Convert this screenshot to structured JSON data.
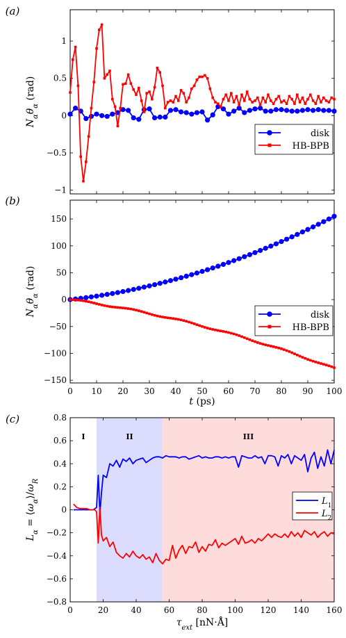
{
  "chart_data": [
    {
      "panel_label": "(a)",
      "type": "line",
      "ylabel": "N_αθ_α (rad)",
      "xlim": [
        0,
        100
      ],
      "ylim": [
        -1.05,
        1.42
      ],
      "yticks": [
        -1,
        -0.5,
        0,
        0.5,
        1
      ],
      "yticklabels": [
        "−1",
        "−0.5",
        "0",
        "0.5",
        "1"
      ],
      "legend_position": "lower-right",
      "series": [
        {
          "name": "disk",
          "color": "#0000ff",
          "marker": "circle",
          "x": [
            0,
            2,
            4,
            6,
            8,
            10,
            12,
            14,
            16,
            18,
            20,
            22,
            24,
            26,
            28,
            30,
            32,
            34,
            36,
            38,
            40,
            42,
            44,
            46,
            48,
            50,
            52,
            54,
            56,
            58,
            60,
            62,
            64,
            66,
            68,
            70,
            72,
            74,
            76,
            78,
            80,
            82,
            84,
            86,
            88,
            90,
            92,
            94,
            96,
            98,
            100
          ],
          "y": [
            0.02,
            0.1,
            0.06,
            -0.04,
            -0.01,
            0.02,
            0.0,
            -0.01,
            0.02,
            0.04,
            0.08,
            0.07,
            -0.03,
            -0.05,
            0.08,
            0.09,
            -0.03,
            -0.02,
            -0.02,
            0.07,
            0.08,
            0.05,
            0.04,
            0.02,
            0.04,
            0.05,
            -0.06,
            0.01,
            0.12,
            0.09,
            0.02,
            0.06,
            0.1,
            0.04,
            0.07,
            0.09,
            0.1,
            0.06,
            0.06,
            0.08,
            0.08,
            0.07,
            0.06,
            0.06,
            0.07,
            0.08,
            0.07,
            0.08,
            0.07,
            0.07,
            0.06
          ]
        },
        {
          "name": "HB-BPB",
          "color": "#ff0000",
          "marker": "square",
          "x": [
            0,
            1,
            2,
            3,
            4,
            5,
            6,
            7,
            8,
            9,
            10,
            11,
            12,
            13,
            14,
            15,
            16,
            17,
            18,
            19,
            20,
            21,
            22,
            23,
            24,
            25,
            26,
            27,
            28,
            29,
            30,
            31,
            32,
            33,
            34,
            35,
            36,
            37,
            38,
            39,
            40,
            41,
            42,
            43,
            44,
            45,
            46,
            47,
            48,
            49,
            50,
            51,
            52,
            53,
            54,
            55,
            56,
            57,
            58,
            59,
            60,
            61,
            62,
            63,
            64,
            65,
            66,
            67,
            68,
            69,
            70,
            71,
            72,
            73,
            74,
            75,
            76,
            77,
            78,
            79,
            80,
            81,
            82,
            83,
            84,
            85,
            86,
            87,
            88,
            89,
            90,
            91,
            92,
            93,
            94,
            95,
            96,
            97,
            98,
            99,
            100
          ],
          "y": [
            0.31,
            0.75,
            0.92,
            0.4,
            -0.55,
            -0.88,
            -0.62,
            -0.28,
            0.1,
            0.45,
            0.9,
            1.15,
            1.22,
            0.5,
            0.55,
            0.6,
            0.22,
            0.12,
            -0.14,
            0.1,
            0.42,
            0.43,
            0.55,
            0.43,
            0.35,
            0.28,
            0.37,
            0.2,
            0.05,
            0.3,
            0.32,
            0.22,
            0.38,
            0.64,
            0.58,
            0.4,
            0.1,
            0.18,
            0.2,
            0.18,
            0.26,
            0.2,
            0.34,
            0.3,
            0.18,
            0.24,
            0.36,
            0.4,
            0.48,
            0.52,
            0.52,
            0.54,
            0.5,
            0.36,
            0.24,
            0.18,
            0.16,
            0.12,
            0.22,
            0.28,
            0.2,
            0.3,
            0.18,
            0.26,
            0.14,
            0.28,
            0.2,
            0.32,
            0.22,
            0.18,
            0.2,
            0.24,
            0.14,
            0.24,
            0.18,
            0.28,
            0.2,
            0.16,
            0.22,
            0.26,
            0.18,
            0.2,
            0.16,
            0.26,
            0.22,
            0.16,
            0.28,
            0.18,
            0.24,
            0.16,
            0.22,
            0.28,
            0.2,
            0.16,
            0.26,
            0.18,
            0.24,
            0.2,
            0.18,
            0.24,
            0.22
          ]
        }
      ]
    },
    {
      "panel_label": "(b)",
      "type": "line",
      "xlabel": "t (ps)",
      "ylabel": "N_αθ_α (rad)",
      "xlim": [
        0,
        100
      ],
      "ylim": [
        -155,
        185
      ],
      "xticks": [
        0,
        10,
        20,
        30,
        40,
        50,
        60,
        70,
        80,
        90,
        100
      ],
      "yticks": [
        -150,
        -100,
        -50,
        0,
        50,
        100,
        150
      ],
      "yticklabels": [
        "−150",
        "−100",
        "−50",
        "0",
        "50",
        "100",
        "150"
      ],
      "legend_position": "lower-right",
      "series": [
        {
          "name": "disk",
          "color": "#0000ff",
          "marker": "circle",
          "model": "y = 0.01*x^2 + 0.55*x",
          "x_step": 2
        },
        {
          "name": "HB-BPB",
          "color": "#ff0000",
          "marker": "square",
          "model": "y = -(0.006*x^2 + 0.68*x)",
          "x_step": 1
        }
      ]
    },
    {
      "panel_label": "(c)",
      "type": "line",
      "xlabel": "τ_ext [nN·Å]",
      "ylabel": "L_α = ⟨ω_α⟩/ω_R",
      "xlim": [
        0,
        160
      ],
      "ylim": [
        -0.8,
        0.8
      ],
      "xticks": [
        0,
        20,
        40,
        60,
        80,
        100,
        120,
        140,
        160
      ],
      "yticks": [
        -0.8,
        -0.6,
        -0.4,
        -0.2,
        0,
        0.2,
        0.4,
        0.6,
        0.8
      ],
      "yticklabels": [
        "−0.8",
        "−0.6",
        "−0.4",
        "−0.2",
        "0",
        "0.2",
        "0.4",
        "0.6",
        "0.8"
      ],
      "regions": [
        {
          "label": "I",
          "from": 0,
          "to": 16,
          "color": null
        },
        {
          "label": "II",
          "from": 16,
          "to": 56,
          "color": "#dcdcff"
        },
        {
          "label": "III",
          "from": 56,
          "to": 160,
          "color": "#ffdcdc"
        }
      ],
      "legend_position": "center-right",
      "series": [
        {
          "name": "L_1",
          "color": "#0000ff",
          "x": [
            2,
            4,
            6,
            8,
            10,
            12,
            14,
            15,
            16,
            17,
            18,
            19,
            20,
            22,
            24,
            26,
            28,
            30,
            32,
            34,
            36,
            38,
            40,
            42,
            44,
            46,
            48,
            50,
            52,
            54,
            56,
            58,
            60,
            62,
            64,
            66,
            68,
            70,
            72,
            74,
            76,
            78,
            80,
            82,
            84,
            86,
            88,
            90,
            92,
            94,
            96,
            98,
            100,
            102,
            104,
            106,
            108,
            110,
            112,
            114,
            116,
            118,
            120,
            122,
            124,
            126,
            128,
            130,
            132,
            134,
            136,
            138,
            140,
            142,
            144,
            146,
            148,
            150,
            152,
            154,
            156,
            158,
            160
          ],
          "y": [
            0,
            0,
            0,
            0,
            0,
            0,
            0,
            0.01,
            0.02,
            0.3,
            -0.03,
            0.15,
            0.3,
            0.28,
            0.4,
            0.38,
            0.43,
            0.37,
            0.44,
            0.42,
            0.45,
            0.4,
            0.43,
            0.44,
            0.45,
            0.41,
            0.43,
            0.45,
            0.46,
            0.46,
            0.45,
            0.47,
            0.46,
            0.46,
            0.46,
            0.45,
            0.46,
            0.46,
            0.44,
            0.45,
            0.46,
            0.47,
            0.45,
            0.46,
            0.45,
            0.45,
            0.46,
            0.46,
            0.45,
            0.46,
            0.45,
            0.46,
            0.46,
            0.37,
            0.47,
            0.46,
            0.45,
            0.45,
            0.47,
            0.45,
            0.46,
            0.4,
            0.47,
            0.47,
            0.46,
            0.38,
            0.47,
            0.45,
            0.48,
            0.4,
            0.47,
            0.45,
            0.43,
            0.48,
            0.33,
            0.45,
            0.5,
            0.36,
            0.46,
            0.38,
            0.52,
            0.4,
            0.52
          ]
        },
        {
          "name": "L_2",
          "color": "#ff0000",
          "x": [
            2,
            4,
            6,
            8,
            10,
            12,
            14,
            15,
            16,
            17,
            18,
            19,
            20,
            22,
            24,
            26,
            28,
            30,
            32,
            34,
            36,
            38,
            40,
            42,
            44,
            46,
            48,
            50,
            52,
            54,
            56,
            58,
            60,
            62,
            64,
            66,
            68,
            70,
            72,
            74,
            76,
            78,
            80,
            82,
            84,
            86,
            88,
            90,
            92,
            94,
            96,
            98,
            100,
            102,
            104,
            106,
            108,
            110,
            112,
            114,
            116,
            118,
            120,
            122,
            124,
            126,
            128,
            130,
            132,
            134,
            136,
            138,
            140,
            142,
            144,
            146,
            148,
            150,
            152,
            154,
            156,
            158,
            160
          ],
          "y": [
            0.05,
            0.02,
            0.01,
            0.01,
            0.01,
            0.0,
            0.0,
            0.0,
            -0.02,
            -0.29,
            0.02,
            -0.22,
            -0.27,
            -0.24,
            -0.32,
            -0.28,
            -0.37,
            -0.4,
            -0.42,
            -0.38,
            -0.41,
            -0.36,
            -0.4,
            -0.42,
            -0.39,
            -0.43,
            -0.41,
            -0.46,
            -0.38,
            -0.44,
            -0.47,
            -0.43,
            -0.44,
            -0.31,
            -0.42,
            -0.35,
            -0.31,
            -0.38,
            -0.32,
            -0.33,
            -0.28,
            -0.37,
            -0.32,
            -0.36,
            -0.3,
            -0.31,
            -0.26,
            -0.33,
            -0.29,
            -0.31,
            -0.29,
            -0.27,
            -0.25,
            -0.3,
            -0.23,
            -0.29,
            -0.28,
            -0.26,
            -0.29,
            -0.25,
            -0.27,
            -0.24,
            -0.21,
            -0.24,
            -0.21,
            -0.23,
            -0.24,
            -0.21,
            -0.24,
            -0.19,
            -0.23,
            -0.2,
            -0.24,
            -0.18,
            -0.2,
            -0.22,
            -0.19,
            -0.24,
            -0.21,
            -0.19,
            -0.23,
            -0.2,
            -0.21
          ]
        }
      ]
    }
  ]
}
